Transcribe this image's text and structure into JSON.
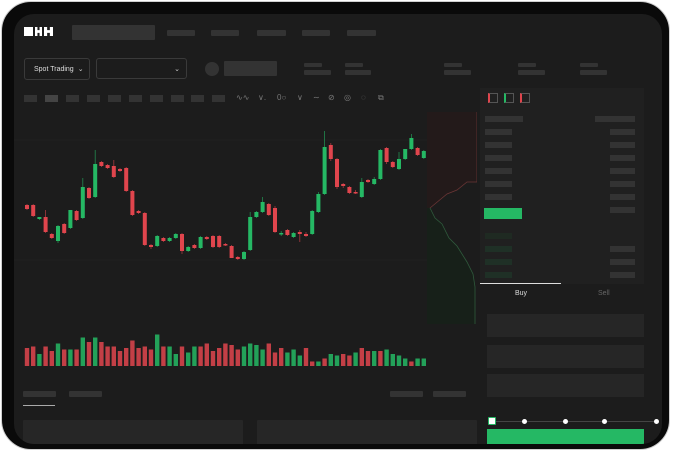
{
  "brand": {
    "logo_text": "OKX"
  },
  "toolbar": {
    "market_select": "Spot Trading",
    "pair_select": ""
  },
  "order_form": {
    "tabs": [
      {
        "label": "Buy",
        "active": true
      },
      {
        "label": "Sell",
        "active": false
      }
    ],
    "slider_percent": 0
  },
  "colors": {
    "up": "#25b864",
    "down": "#e0454d",
    "background": "#1c1c1c",
    "panel": "#202020"
  },
  "icons": {
    "market_chevron": "chevron-down-icon",
    "pair_chevron": "chevron-down-icon"
  },
  "chart_data": {
    "type": "candlestick",
    "candles": [
      [
        97,
        98,
        92,
        93
      ],
      [
        97,
        98,
        85,
        86
      ],
      [
        83,
        85,
        82,
        85
      ],
      [
        85,
        92,
        69,
        70
      ],
      [
        68,
        69,
        63,
        64
      ],
      [
        61,
        77,
        59,
        76
      ],
      [
        78,
        79,
        68,
        69
      ],
      [
        74,
        92,
        73,
        92
      ],
      [
        91,
        92,
        81,
        82
      ],
      [
        84,
        124,
        83,
        115
      ],
      [
        114,
        115,
        103,
        104
      ],
      [
        105,
        152,
        104,
        138
      ],
      [
        140,
        141,
        135,
        136
      ],
      [
        137,
        138,
        133,
        134
      ],
      [
        136,
        142,
        124,
        125
      ],
      [
        133,
        134,
        130,
        131
      ],
      [
        134,
        135,
        110,
        111
      ],
      [
        111,
        112,
        86,
        87
      ],
      [
        91,
        92,
        88,
        89
      ],
      [
        89,
        90,
        56,
        57
      ],
      [
        57,
        58,
        53,
        55
      ],
      [
        56,
        67,
        55,
        66
      ],
      [
        64,
        65,
        60,
        61
      ],
      [
        61,
        65,
        60,
        64
      ],
      [
        64,
        69,
        63,
        68
      ],
      [
        68,
        69,
        48,
        51
      ],
      [
        51,
        56,
        50,
        55
      ],
      [
        57,
        58,
        53,
        54
      ],
      [
        54,
        66,
        53,
        65
      ],
      [
        65,
        66,
        62,
        63
      ],
      [
        66,
        67,
        54,
        55
      ],
      [
        66,
        67,
        54,
        55
      ],
      [
        58,
        59,
        56,
        57
      ],
      [
        56,
        57,
        44,
        44
      ],
      [
        45,
        46,
        42,
        43
      ],
      [
        43,
        51,
        42,
        50
      ],
      [
        52,
        90,
        51,
        85
      ],
      [
        85,
        91,
        84,
        90
      ],
      [
        90,
        105,
        89,
        100
      ],
      [
        98,
        99,
        86,
        87
      ],
      [
        94,
        96,
        69,
        70
      ],
      [
        68,
        71,
        66,
        69
      ],
      [
        72,
        73,
        66,
        67
      ],
      [
        65,
        70,
        64,
        69
      ],
      [
        70,
        72,
        60,
        68
      ],
      [
        68,
        70,
        65,
        66
      ],
      [
        68,
        92,
        67,
        91
      ],
      [
        90,
        110,
        89,
        108
      ],
      [
        108,
        171,
        107,
        155
      ],
      [
        157,
        159,
        141,
        143
      ],
      [
        143,
        144,
        113,
        115
      ],
      [
        118,
        119,
        114,
        116
      ],
      [
        115,
        116,
        108,
        109
      ],
      [
        110,
        112,
        108,
        109
      ],
      [
        105,
        124,
        104,
        120
      ],
      [
        122,
        123,
        119,
        120
      ],
      [
        118,
        125,
        117,
        123
      ],
      [
        123,
        153,
        122,
        152
      ],
      [
        154,
        155,
        138,
        140
      ],
      [
        140,
        141,
        134,
        135
      ],
      [
        133,
        150,
        132,
        143
      ],
      [
        143,
        153,
        142,
        153
      ],
      [
        153,
        168,
        152,
        164
      ],
      [
        154,
        155,
        146,
        147
      ],
      [
        144,
        152,
        143,
        151
      ]
    ],
    "volume": [
      12,
      13,
      8,
      13,
      10,
      15,
      11,
      11,
      11,
      19,
      16,
      19,
      16,
      13,
      13,
      10,
      12,
      17,
      12,
      13,
      11,
      21,
      13,
      13,
      8,
      13,
      9,
      13,
      13,
      15,
      10,
      12,
      15,
      14,
      11,
      13,
      15,
      14,
      11,
      15,
      9,
      12,
      9,
      11,
      7,
      12,
      3,
      3,
      5,
      8,
      7,
      8,
      7,
      9,
      12,
      10,
      10,
      10,
      11,
      8,
      7,
      5,
      3,
      5,
      5
    ],
    "volume_up": [
      0,
      0,
      1,
      0,
      0,
      1,
      0,
      1,
      0,
      1,
      0,
      1,
      0,
      0,
      0,
      0,
      0,
      0,
      0,
      0,
      0,
      1,
      0,
      1,
      1,
      0,
      1,
      1,
      0,
      0,
      0,
      0,
      0,
      0,
      0,
      1,
      1,
      1,
      1,
      0,
      0,
      0,
      1,
      1,
      1,
      0,
      0,
      1,
      0,
      1,
      1,
      0,
      0,
      1,
      0,
      0,
      1,
      0,
      1,
      1,
      1,
      1,
      0,
      1,
      1
    ]
  }
}
